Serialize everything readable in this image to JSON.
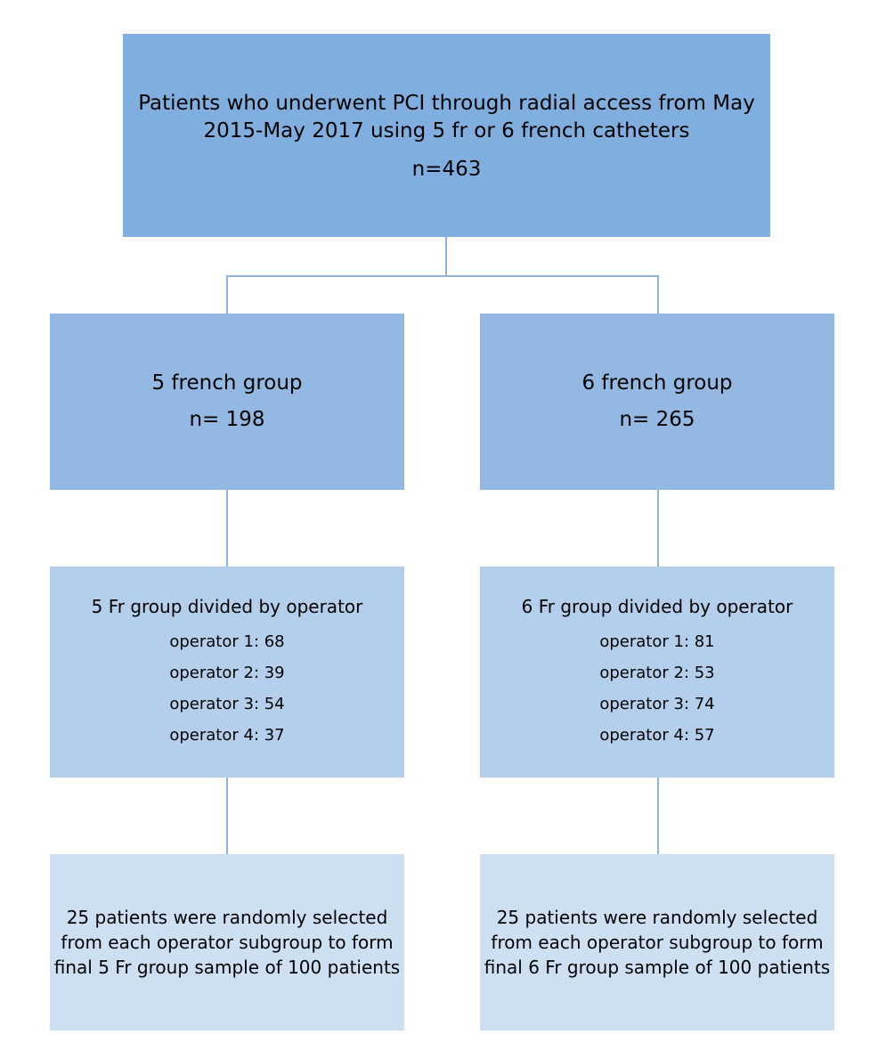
{
  "top": {
    "title_line1": "Patients who underwent PCI through radial access from May",
    "title_line2": "2015-May 2017 using 5 fr or 6 french catheters",
    "count": "n=463"
  },
  "groups": [
    {
      "label": "5 french group",
      "count": "n= 198",
      "operators_heading": "5 Fr group divided by operator",
      "operators": [
        "operator 1: 68",
        "operator 2: 39",
        "operator 3: 54",
        "operator 4: 37"
      ],
      "final_lines": [
        "25 patients were randomly selected",
        "from each operator subgroup to form",
        "final 5 Fr group sample of 100 patients"
      ]
    },
    {
      "label": "6 french group",
      "count": "n= 265",
      "operators_heading": "6 Fr group divided by operator",
      "operators": [
        "operator 1: 81",
        "operator 2: 53",
        "operator 3: 74",
        "operator 4: 57"
      ],
      "final_lines": [
        "25 patients were randomly selected",
        "from each operator subgroup to form",
        "final 6 Fr group sample of 100 patients"
      ]
    }
  ],
  "colors": {
    "top_box": "#80afdf",
    "group_box": "#93b9e3",
    "operator_box": "#b3cfec",
    "final_box": "#cde0f2",
    "connector": "#8fb3dc"
  }
}
